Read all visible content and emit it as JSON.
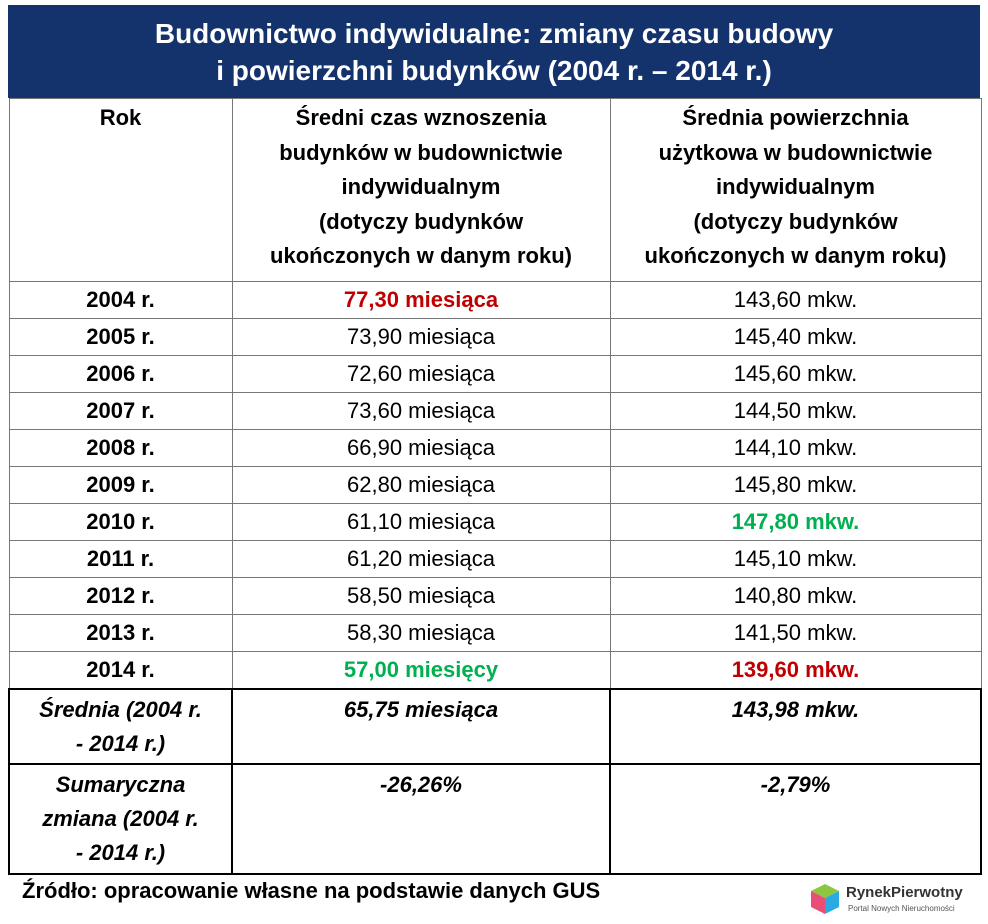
{
  "header": {
    "title": "Budownictwo indywidualne: zmiany czasu budowy\ni powierzchni budynków (2004 r. – 2014 r.)"
  },
  "table": {
    "columns": [
      "Rok",
      "Średni czas wznoszenia\nbudynków w budownictwie\nindywidualnym\n(dotyczy budynków\nukończonych w danym roku)",
      "Średnia powierzchnia\nużytkowa w budownictwie\nindywidualnym\n(dotyczy budynków\nukończonych w danym roku)"
    ],
    "rows": [
      [
        {
          "text": "2004 r."
        },
        {
          "text": "77,30 miesiąca",
          "color": "#c00000"
        },
        {
          "text": "143,60 mkw."
        }
      ],
      [
        {
          "text": "2005 r."
        },
        {
          "text": "73,90 miesiąca"
        },
        {
          "text": "145,40 mkw."
        }
      ],
      [
        {
          "text": "2006 r."
        },
        {
          "text": "72,60 miesiąca"
        },
        {
          "text": "145,60 mkw."
        }
      ],
      [
        {
          "text": "2007 r."
        },
        {
          "text": "73,60 miesiąca"
        },
        {
          "text": "144,50 mkw."
        }
      ],
      [
        {
          "text": "2008 r."
        },
        {
          "text": "66,90 miesiąca"
        },
        {
          "text": "144,10 mkw."
        }
      ],
      [
        {
          "text": "2009 r."
        },
        {
          "text": "62,80 miesiąca"
        },
        {
          "text": "145,80 mkw."
        }
      ],
      [
        {
          "text": "2010 r."
        },
        {
          "text": "61,10 miesiąca"
        },
        {
          "text": "147,80 mkw.",
          "color": "#00b050"
        }
      ],
      [
        {
          "text": "2011 r."
        },
        {
          "text": "61,20 miesiąca"
        },
        {
          "text": "145,10 mkw."
        }
      ],
      [
        {
          "text": "2012 r."
        },
        {
          "text": "58,50 miesiąca"
        },
        {
          "text": "140,80 mkw."
        }
      ],
      [
        {
          "text": "2013 r."
        },
        {
          "text": "58,30 miesiąca"
        },
        {
          "text": "141,50 mkw."
        }
      ],
      [
        {
          "text": "2014 r."
        },
        {
          "text": "57,00 miesięcy",
          "color": "#00b050"
        },
        {
          "text": "139,60 mkw.",
          "color": "#c00000"
        }
      ]
    ],
    "summary": [
      [
        "Średnia (2004 r.\n- 2014 r.)",
        "65,75 miesiąca",
        "143,98 mkw."
      ],
      [
        "Sumaryczna\nzmiana (2004 r.\n- 2014 r.)",
        "-26,26%",
        "-2,79%"
      ]
    ]
  },
  "footer": {
    "source": "Źródło: opracowanie własne na podstawie danych GUS",
    "logo": {
      "name": "RynekPierwotny",
      "tagline": "Portal Nowych Nieruchomości"
    }
  }
}
